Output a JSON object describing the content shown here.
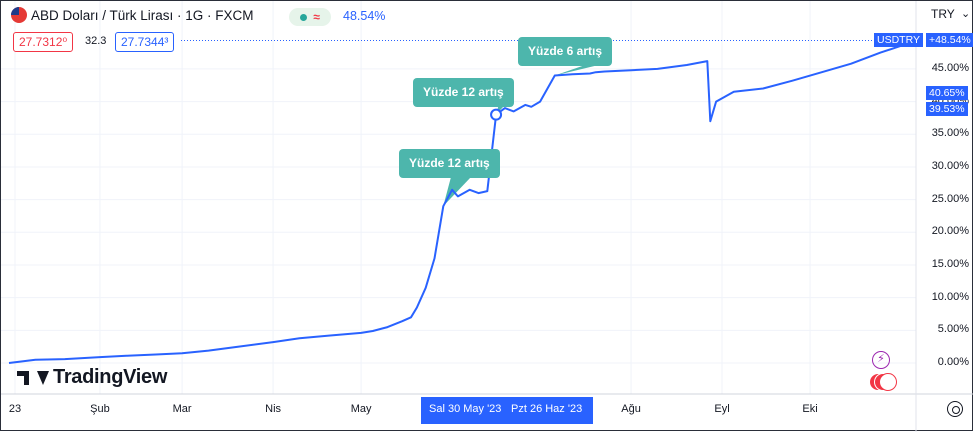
{
  "header": {
    "title": "ABD Doları / Türk Lirası · 1G · FXCM",
    "change_pct": "48.54%",
    "status_icon": "wave-icon",
    "sell_price": "27.7312⁰",
    "spread": "32.3",
    "buy_price": "27.7344³",
    "currency": "TRY",
    "currency_caret": "⌄"
  },
  "price_scale": {
    "ticks": [
      "45.00%",
      "40.00%",
      "35.00%",
      "30.00%",
      "25.00%",
      "20.00%",
      "15.00%",
      "10.00%",
      "5.00%",
      "0.00%"
    ],
    "symbol_tag": "USDTRY",
    "last_tag": "+48.54%",
    "marker_high": "40.65%",
    "marker_low": "39.53%"
  },
  "time_scale": {
    "labels": [
      "23",
      "Şub",
      "Mar",
      "Nis",
      "May",
      "Ağu",
      "Eyl",
      "Eki"
    ],
    "selection_start": "Sal 30 May '23",
    "selection_end": "Pzt 26 Haz '23"
  },
  "callouts": [
    "Yüzde 6 artış",
    "Yüzde 12 artış",
    "Yüzde 12 artış"
  ],
  "branding": {
    "logo_text": "TradingView"
  },
  "colors": {
    "line": "#2962ff",
    "callout": "#4db6ac",
    "sell": "#f23645",
    "buy": "#2962ff"
  },
  "chart_data": {
    "type": "line",
    "series": [
      {
        "name": "USDTRY",
        "x": [
          "2023-01-01",
          "2023-01-10",
          "2023-01-20",
          "2023-02-01",
          "2023-02-10",
          "2023-02-20",
          "2023-03-01",
          "2023-03-10",
          "2023-03-20",
          "2023-04-01",
          "2023-04-10",
          "2023-04-20",
          "2023-05-01",
          "2023-05-05",
          "2023-05-10",
          "2023-05-15",
          "2023-05-18",
          "2023-05-20",
          "2023-05-23",
          "2023-05-26",
          "2023-05-29",
          "2023-06-01",
          "2023-06-03",
          "2023-06-07",
          "2023-06-10",
          "2023-06-13",
          "2023-06-16",
          "2023-06-19",
          "2023-06-22",
          "2023-06-26",
          "2023-06-28",
          "2023-07-01",
          "2023-07-06",
          "2023-07-12",
          "2023-07-18",
          "2023-07-20",
          "2023-07-23",
          "2023-08-01",
          "2023-08-10",
          "2023-08-20",
          "2023-08-27",
          "2023-08-28",
          "2023-08-30",
          "2023-09-05",
          "2023-09-15",
          "2023-09-25",
          "2023-10-05",
          "2023-10-15",
          "2023-10-25",
          "2023-11-01"
        ],
        "values": [
          0,
          0.5,
          0.6,
          0.9,
          1.1,
          1.3,
          1.5,
          1.9,
          2.5,
          3.2,
          3.8,
          4.2,
          4.6,
          4.9,
          5.5,
          6.4,
          7.0,
          8.5,
          11.5,
          16.0,
          24.0,
          26.5,
          25.5,
          26.5,
          26.0,
          26.3,
          38.0,
          39.0,
          38.5,
          39.5,
          39.2,
          40.0,
          44.0,
          44.2,
          44.3,
          44.5,
          44.6,
          44.8,
          45.0,
          45.6,
          46.2,
          37.0,
          40.0,
          41.5,
          42.0,
          43.2,
          44.5,
          45.8,
          47.5,
          48.54
        ]
      }
    ],
    "annotations": [
      {
        "text": "Yüzde 12 artış",
        "x": "2023-05-29",
        "y": 24.0
      },
      {
        "text": "Yüzde 12 artış",
        "x": "2023-06-16",
        "y": 38.0
      },
      {
        "text": "Yüzde 6 artış",
        "x": "2023-07-06",
        "y": 44.0
      }
    ],
    "ylabel": "",
    "ylim": [
      -1.5,
      50
    ],
    "y_unit": "%",
    "xlim": [
      "2023-01-01",
      "2023-11-01"
    ],
    "grid": true,
    "last_value_label": "+48.54%"
  }
}
